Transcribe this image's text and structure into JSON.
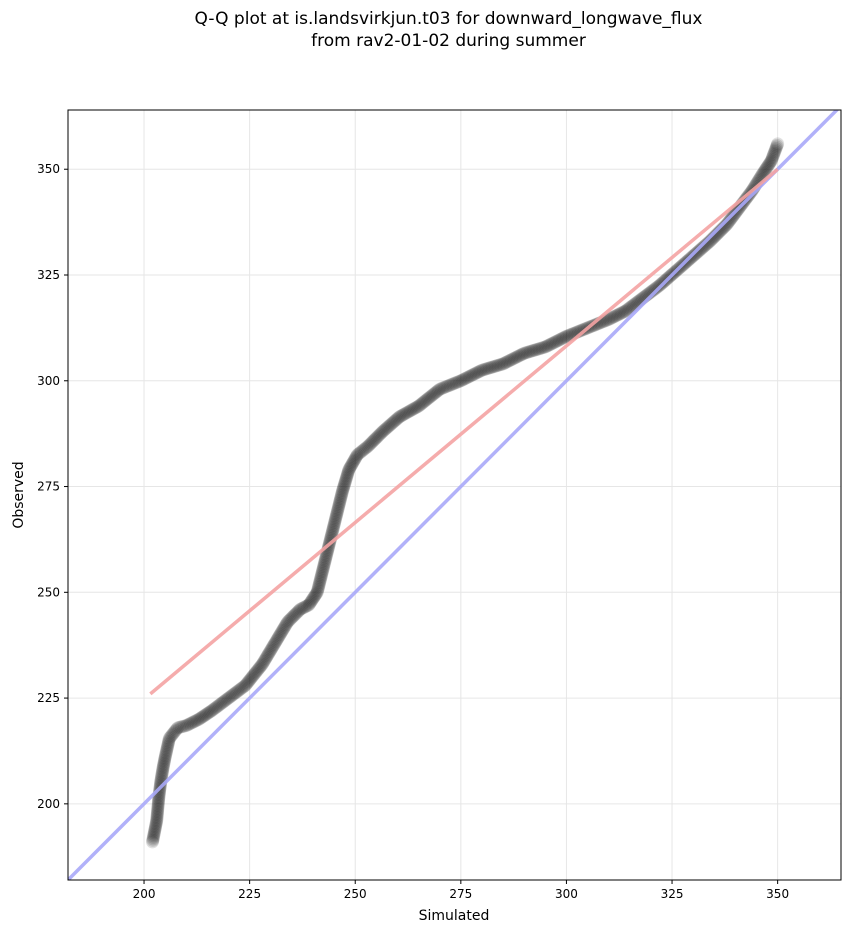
{
  "chart_data": {
    "type": "scatter",
    "title_line1": "Q-Q plot at is.landsvirkjun.t03 for downward_longwave_flux",
    "title_line2": "from rav2-01-02 during summer",
    "xlabel": "Simulated",
    "ylabel": "Observed",
    "xlim": [
      182,
      365
    ],
    "ylim": [
      182,
      364
    ],
    "xticks": [
      200,
      225,
      250,
      275,
      300,
      325,
      350
    ],
    "yticks": [
      200,
      225,
      250,
      275,
      300,
      325,
      350
    ],
    "grid": true,
    "quantile_curve": [
      [
        202.0,
        191.0
      ],
      [
        202.5,
        193.5
      ],
      [
        203.0,
        196.0
      ],
      [
        203.5,
        201.5
      ],
      [
        204.0,
        205.5
      ],
      [
        204.5,
        208.5
      ],
      [
        205.0,
        211.0
      ],
      [
        206.0,
        215.5
      ],
      [
        208.0,
        218.0
      ],
      [
        210.0,
        218.5
      ],
      [
        213.0,
        220.0
      ],
      [
        216.0,
        222.0
      ],
      [
        220.0,
        225.0
      ],
      [
        224.0,
        228.0
      ],
      [
        228.0,
        233.0
      ],
      [
        231.0,
        238.0
      ],
      [
        234.0,
        243.0
      ],
      [
        237.0,
        246.0
      ],
      [
        239.0,
        247.0
      ],
      [
        241.0,
        250.0
      ],
      [
        242.5,
        256.0
      ],
      [
        244.0,
        262.0
      ],
      [
        245.5,
        268.0
      ],
      [
        247.0,
        274.0
      ],
      [
        248.5,
        279.0
      ],
      [
        250.5,
        282.5
      ],
      [
        253.0,
        284.5
      ],
      [
        256.5,
        288.0
      ],
      [
        260.5,
        291.5
      ],
      [
        265.0,
        294.0
      ],
      [
        270.0,
        298.0
      ],
      [
        275.0,
        300.0
      ],
      [
        280.0,
        302.5
      ],
      [
        285.0,
        304.0
      ],
      [
        290.0,
        306.5
      ],
      [
        295.0,
        308.0
      ],
      [
        300.0,
        310.5
      ],
      [
        305.0,
        312.5
      ],
      [
        310.0,
        314.5
      ],
      [
        314.0,
        316.5
      ],
      [
        318.0,
        319.5
      ],
      [
        322.0,
        322.5
      ],
      [
        326.0,
        326.0
      ],
      [
        330.0,
        329.5
      ],
      [
        334.0,
        333.0
      ],
      [
        338.0,
        337.0
      ],
      [
        341.0,
        341.0
      ],
      [
        344.0,
        345.0
      ],
      [
        346.5,
        349.0
      ],
      [
        348.5,
        352.0
      ],
      [
        350.0,
        356.0
      ]
    ],
    "fit_line": {
      "color": "#f4a3a3",
      "from": [
        201.5,
        226.0
      ],
      "to": [
        350.0,
        350.0
      ]
    },
    "identity_line": {
      "color": "#a8a8f8",
      "from": [
        182.0,
        182.0
      ],
      "to": [
        365.0,
        365.0
      ]
    },
    "point_color": "#000000",
    "point_opacity": 0.12
  }
}
